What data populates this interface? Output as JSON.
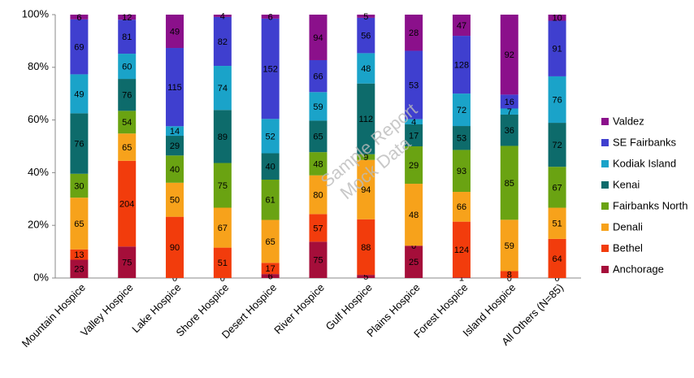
{
  "chart_data": {
    "type": "bar",
    "stacking": "percent",
    "watermark": [
      "Sample Report",
      "Mock Data"
    ],
    "categories": [
      "Mountain Hospice",
      "Valley Hospice",
      "Lake Hospice",
      "Shore Hospice",
      "Desert Hospice",
      "River Hospice",
      "Gulf Hospice",
      "Plains Hospice",
      "Forest Hospice",
      "Island Hospice",
      "All Others (N=85)"
    ],
    "series": [
      {
        "name": "Anchorage",
        "color": "#a50e3a",
        "values": [
          23,
          75,
          0,
          0,
          6,
          75,
          5,
          25,
          1,
          0,
          0
        ]
      },
      {
        "name": "Bethel",
        "color": "#f23c0c",
        "values": [
          13,
          204,
          90,
          51,
          17,
          57,
          88,
          0,
          124,
          8,
          64
        ]
      },
      {
        "name": "Denali",
        "color": "#f7a21b",
        "values": [
          65,
          65,
          50,
          67,
          65,
          80,
          94,
          48,
          66,
          59,
          51
        ]
      },
      {
        "name": "Fairbanks North",
        "color": "#6aa312",
        "values": [
          30,
          54,
          40,
          75,
          61,
          48,
          9,
          29,
          93,
          85,
          67
        ]
      },
      {
        "name": "Kenai",
        "color": "#0d6b6b",
        "values": [
          76,
          76,
          29,
          89,
          40,
          65,
          112,
          17,
          53,
          36,
          72
        ]
      },
      {
        "name": "Kodiak Island",
        "color": "#1aa3c9",
        "values": [
          49,
          60,
          14,
          74,
          52,
          59,
          48,
          4,
          72,
          7,
          76
        ]
      },
      {
        "name": "SE Fairbanks",
        "color": "#3f3fcf",
        "values": [
          69,
          81,
          115,
          82,
          152,
          66,
          56,
          53,
          128,
          16,
          91
        ]
      },
      {
        "name": "Valdez",
        "color": "#8b108b",
        "values": [
          6,
          12,
          49,
          4,
          6,
          94,
          5,
          28,
          47,
          92,
          10
        ]
      }
    ],
    "ylim": [
      0,
      100
    ],
    "yticks": [
      {
        "value": 0,
        "label": "0%"
      },
      {
        "value": 20,
        "label": "20%"
      },
      {
        "value": 40,
        "label": "40%"
      },
      {
        "value": 60,
        "label": "60%"
      },
      {
        "value": 80,
        "label": "80%"
      },
      {
        "value": 100,
        "label": "100%"
      }
    ],
    "legend": "right"
  }
}
